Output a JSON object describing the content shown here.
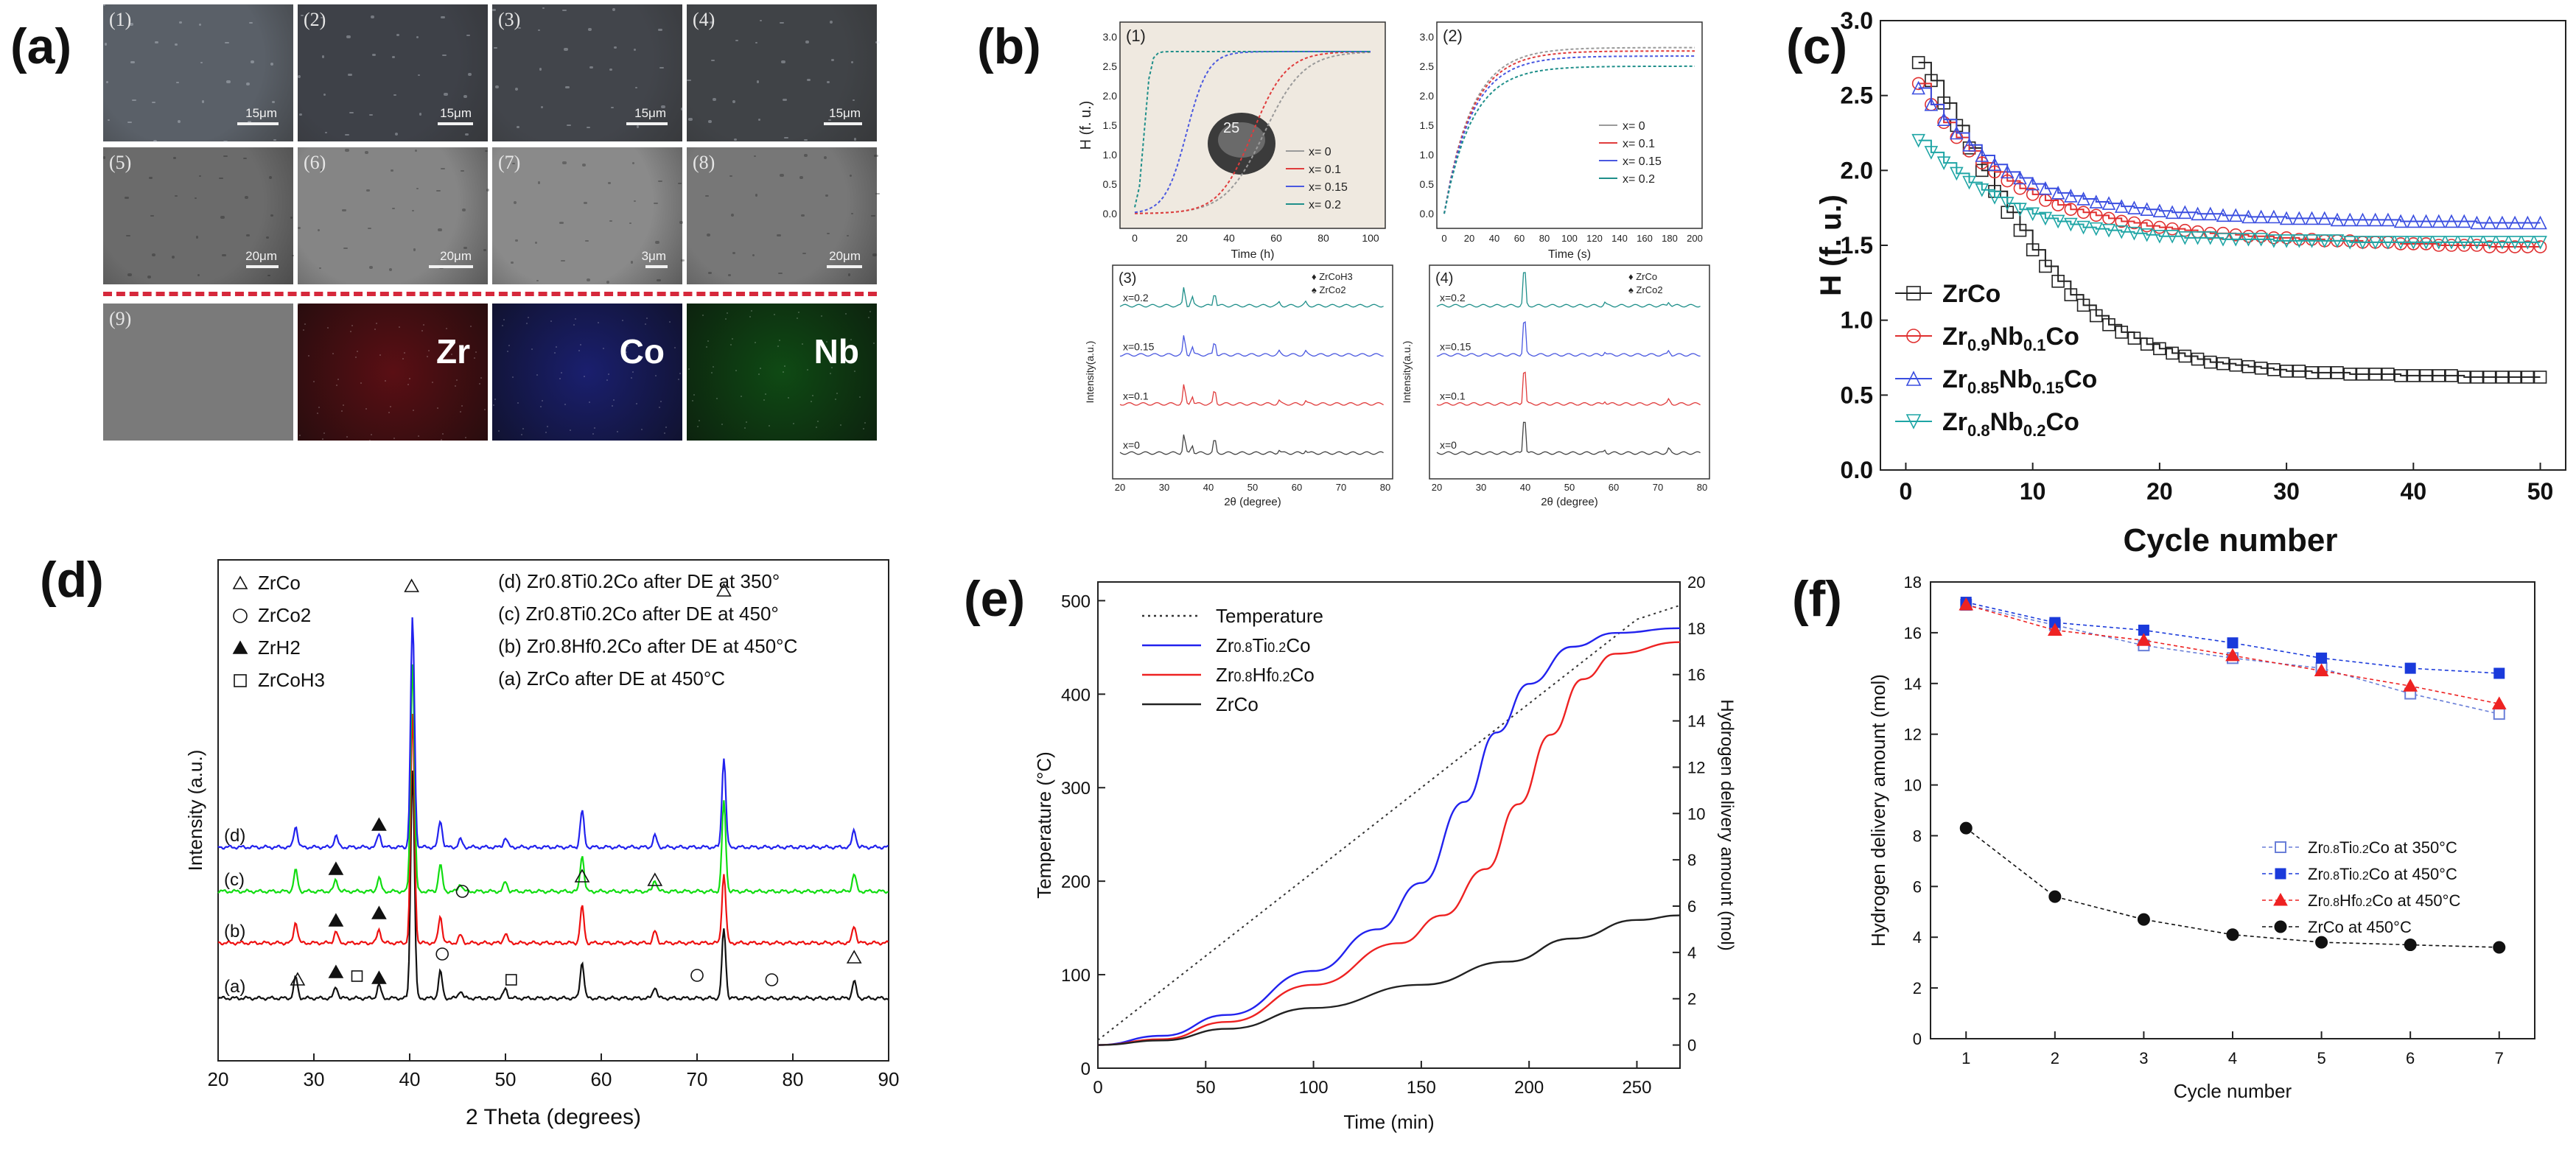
{
  "labels": {
    "a": "(a)",
    "b": "(b)",
    "c": "(c)",
    "d": "(d)",
    "e": "(e)",
    "f": "(f)"
  },
  "panel_a": {
    "tiles": [
      {
        "num": "(1)",
        "scale": "15μm",
        "tone": "#5a6068"
      },
      {
        "num": "(2)",
        "scale": "15μm",
        "tone": "#3e4148"
      },
      {
        "num": "(3)",
        "scale": "15μm",
        "tone": "#42454b"
      },
      {
        "num": "(4)",
        "scale": "15μm",
        "tone": "#404347"
      },
      {
        "num": "(5)",
        "scale": "20μm",
        "tone": "#6b6b6b"
      },
      {
        "num": "(6)",
        "scale": "20μm",
        "tone": "#858585"
      },
      {
        "num": "(7)",
        "scale": "3μm",
        "tone": "#8a8a8a"
      },
      {
        "num": "(8)",
        "scale": "20μm",
        "tone": "#777777"
      },
      {
        "num": "(9)",
        "scale": "",
        "tone": "#7a7a7a"
      }
    ],
    "maps": [
      {
        "element": "Zr",
        "color": "#5a0f14"
      },
      {
        "element": "Co",
        "color": "#1a1f6e"
      },
      {
        "element": "Nb",
        "color": "#0f4a14"
      }
    ]
  },
  "panel_b": {
    "sub1": {
      "num": "(1)",
      "ylabel": "H (f. u.)",
      "xlabel": "Time (h)",
      "xticks": [
        "0",
        "20",
        "40",
        "60",
        "80",
        "100"
      ],
      "yticks": [
        "0.0",
        "0.5",
        "1.0",
        "1.5",
        "2.0",
        "2.5",
        "3.0"
      ],
      "legend": [
        "x= 0",
        "x= 0.1",
        "x= 0.15",
        "x= 0.2"
      ],
      "photo_label": "25"
    },
    "sub2": {
      "num": "(2)",
      "xlabel": "Time (s)",
      "xticks": [
        "0",
        "20",
        "40",
        "60",
        "80",
        "100",
        "120",
        "140",
        "160",
        "180",
        "200"
      ],
      "yticks": [
        "0.0",
        "0.5",
        "1.0",
        "1.5",
        "2.0",
        "2.5",
        "3.0"
      ],
      "legend": [
        "x= 0",
        "x= 0.1",
        "x= 0.15",
        "x= 0.2"
      ]
    },
    "sub3": {
      "num": "(3)",
      "ylabel": "Intensity(a.u.)",
      "xlabel": "2θ (degree)",
      "xticks": [
        "20",
        "30",
        "40",
        "50",
        "60",
        "70",
        "80"
      ],
      "curves": [
        "x=0.2",
        "x=0.15",
        "x=0.1",
        "x=0"
      ],
      "legend": [
        "ZrCoH3",
        "ZrCo2"
      ]
    },
    "sub4": {
      "num": "(4)",
      "ylabel": "Intensity(a.u.)",
      "xlabel": "2θ (degree)",
      "xticks": [
        "20",
        "30",
        "40",
        "50",
        "60",
        "70",
        "80"
      ],
      "curves": [
        "x=0.2",
        "x=0.15",
        "x=0.1",
        "x=0"
      ],
      "legend": [
        "ZrCo",
        "ZrCo2"
      ]
    },
    "colors": [
      "#9a9a9a",
      "#e03c3c",
      "#4a58e0",
      "#1f8f8a"
    ]
  },
  "chart_data": [
    {
      "id": "c",
      "type": "line",
      "title": "",
      "xlabel": "Cycle number",
      "ylabel": "H (f. u.)",
      "xlim": [
        -2,
        52
      ],
      "ylim": [
        0.0,
        3.0
      ],
      "xticks": [
        "0",
        "10",
        "20",
        "30",
        "40",
        "50"
      ],
      "yticks": [
        "0.0",
        "0.5",
        "1.0",
        "1.5",
        "2.0",
        "2.5",
        "3.0"
      ],
      "x": [
        1,
        2,
        3,
        4,
        5,
        6,
        7,
        8,
        9,
        10,
        11,
        12,
        13,
        14,
        15,
        16,
        17,
        18,
        19,
        20,
        21,
        22,
        23,
        24,
        25,
        26,
        27,
        28,
        29,
        30,
        31,
        32,
        33,
        34,
        35,
        36,
        37,
        38,
        39,
        40,
        41,
        42,
        43,
        44,
        45,
        46,
        47,
        48,
        49,
        50
      ],
      "series": [
        {
          "name": "ZrCo",
          "color": "#222222",
          "marker": "square",
          "values": [
            2.72,
            2.6,
            2.45,
            2.3,
            2.15,
            2.0,
            1.86,
            1.72,
            1.6,
            1.47,
            1.36,
            1.26,
            1.17,
            1.1,
            1.03,
            0.97,
            0.92,
            0.88,
            0.84,
            0.81,
            0.78,
            0.76,
            0.74,
            0.72,
            0.71,
            0.7,
            0.69,
            0.68,
            0.67,
            0.66,
            0.66,
            0.65,
            0.65,
            0.65,
            0.64,
            0.64,
            0.64,
            0.64,
            0.63,
            0.63,
            0.63,
            0.63,
            0.63,
            0.62,
            0.62,
            0.62,
            0.62,
            0.62,
            0.62,
            0.62
          ]
        },
        {
          "name": "Zr0.9Nb0.1Co",
          "color": "#e03030",
          "marker": "circle",
          "values": [
            2.58,
            2.44,
            2.32,
            2.22,
            2.13,
            2.05,
            1.99,
            1.93,
            1.88,
            1.84,
            1.8,
            1.77,
            1.74,
            1.72,
            1.7,
            1.68,
            1.66,
            1.65,
            1.63,
            1.62,
            1.61,
            1.6,
            1.59,
            1.58,
            1.58,
            1.57,
            1.56,
            1.56,
            1.55,
            1.55,
            1.54,
            1.54,
            1.53,
            1.53,
            1.53,
            1.52,
            1.52,
            1.52,
            1.51,
            1.51,
            1.51,
            1.5,
            1.5,
            1.5,
            1.5,
            1.49,
            1.49,
            1.49,
            1.49,
            1.49
          ]
        },
        {
          "name": "Zr0.85Nb0.15Co",
          "color": "#3a4ee0",
          "marker": "triangle-up",
          "values": [
            2.55,
            2.44,
            2.34,
            2.25,
            2.17,
            2.1,
            2.04,
            1.99,
            1.95,
            1.91,
            1.88,
            1.85,
            1.83,
            1.81,
            1.79,
            1.78,
            1.76,
            1.75,
            1.74,
            1.73,
            1.72,
            1.72,
            1.71,
            1.71,
            1.7,
            1.7,
            1.69,
            1.69,
            1.69,
            1.68,
            1.68,
            1.68,
            1.68,
            1.67,
            1.67,
            1.67,
            1.67,
            1.67,
            1.66,
            1.66,
            1.66,
            1.66,
            1.66,
            1.66,
            1.65,
            1.65,
            1.65,
            1.65,
            1.65,
            1.65
          ]
        },
        {
          "name": "Zr0.8Nb0.2Co",
          "color": "#1ea5a5",
          "marker": "triangle-down",
          "values": [
            2.2,
            2.12,
            2.05,
            1.98,
            1.92,
            1.87,
            1.82,
            1.78,
            1.74,
            1.71,
            1.68,
            1.66,
            1.64,
            1.62,
            1.61,
            1.6,
            1.59,
            1.58,
            1.57,
            1.56,
            1.56,
            1.55,
            1.55,
            1.55,
            1.54,
            1.54,
            1.54,
            1.54,
            1.53,
            1.53,
            1.53,
            1.53,
            1.53,
            1.53,
            1.52,
            1.52,
            1.52,
            1.52,
            1.52,
            1.52,
            1.52,
            1.52,
            1.52,
            1.52,
            1.52,
            1.52,
            1.52,
            1.52,
            1.52,
            1.52
          ]
        }
      ],
      "legend_placement": "bottom-left"
    },
    {
      "id": "d",
      "type": "line",
      "xlabel": "2 Theta (degrees)",
      "ylabel": "Intensity (a.u.)",
      "xlim": [
        20,
        90
      ],
      "xticks": [
        "20",
        "30",
        "40",
        "50",
        "60",
        "70",
        "80",
        "90"
      ],
      "series": [
        {
          "name": "(a)",
          "label": "(a) ZrCo after DE at 450°C",
          "color": "#111111",
          "offset": 0
        },
        {
          "name": "(b)",
          "label": "(b) Zr0.8Hf0.2Co after DE at 450°C",
          "color": "#ee1111",
          "offset": 1
        },
        {
          "name": "(c)",
          "label": "(c) Zr0.8Ti0.2Co after DE at 450°",
          "color": "#11dd11",
          "offset": 2
        },
        {
          "name": "(d)",
          "label": "(d) Zr0.8Ti0.2Co after DE at 350°",
          "color": "#2222ee",
          "offset": 3
        }
      ],
      "peaks": [
        {
          "x": 28.1,
          "h": 0.55
        },
        {
          "x": 32.3,
          "h": 0.3
        },
        {
          "x": 36.8,
          "h": 0.35
        },
        {
          "x": 40.3,
          "h": 6.0
        },
        {
          "x": 43.2,
          "h": 0.7
        },
        {
          "x": 45.3,
          "h": 0.2
        },
        {
          "x": 50.0,
          "h": 0.25
        },
        {
          "x": 58.0,
          "h": 0.95
        },
        {
          "x": 65.6,
          "h": 0.3
        },
        {
          "x": 72.8,
          "h": 1.8
        },
        {
          "x": 86.4,
          "h": 0.45
        }
      ],
      "legend_phases": [
        "ZrCo",
        "ZrCo2",
        "ZrH2",
        "ZrCoH3"
      ]
    },
    {
      "id": "e",
      "type": "line",
      "xlabel": "Time (min)",
      "ylabel": "Temperature (°C)",
      "y2label": "Hydrogen delivery amount (mol)",
      "xlim": [
        0,
        270
      ],
      "ylim": [
        0,
        520
      ],
      "y2lim": [
        -1,
        20
      ],
      "xticks": [
        "0",
        "50",
        "100",
        "150",
        "200",
        "250"
      ],
      "yticks": [
        "0",
        "100",
        "200",
        "300",
        "400",
        "500"
      ],
      "y2ticks": [
        "0",
        "2",
        "4",
        "6",
        "8",
        "10",
        "12",
        "14",
        "16",
        "18",
        "20"
      ],
      "series": [
        {
          "name": "Temperature",
          "color": "#333333",
          "dash": true,
          "axis": "left",
          "points": [
            [
              0,
              30
            ],
            [
              250,
              480
            ],
            [
              270,
              495
            ]
          ]
        },
        {
          "name": "Zr0.8Ti0.2Co",
          "color": "#2222ee",
          "axis": "right",
          "points": [
            [
              0,
              0
            ],
            [
              30,
              0.4
            ],
            [
              60,
              1.3
            ],
            [
              100,
              3.2
            ],
            [
              130,
              5.0
            ],
            [
              150,
              7.0
            ],
            [
              170,
              10.5
            ],
            [
              185,
              13.5
            ],
            [
              200,
              15.6
            ],
            [
              220,
              17.2
            ],
            [
              240,
              17.8
            ],
            [
              270,
              18.0
            ]
          ]
        },
        {
          "name": "Zr0.8Hf0.2Co",
          "color": "#ee2222",
          "axis": "right",
          "points": [
            [
              0,
              0
            ],
            [
              30,
              0.25
            ],
            [
              60,
              1.0
            ],
            [
              100,
              2.6
            ],
            [
              140,
              4.4
            ],
            [
              160,
              5.6
            ],
            [
              180,
              7.6
            ],
            [
              195,
              10.4
            ],
            [
              210,
              13.4
            ],
            [
              225,
              15.8
            ],
            [
              240,
              16.9
            ],
            [
              270,
              17.4
            ]
          ]
        },
        {
          "name": "ZrCo",
          "color": "#222222",
          "axis": "right",
          "points": [
            [
              0,
              0
            ],
            [
              30,
              0.2
            ],
            [
              60,
              0.7
            ],
            [
              100,
              1.6
            ],
            [
              150,
              2.6
            ],
            [
              190,
              3.6
            ],
            [
              220,
              4.6
            ],
            [
              250,
              5.4
            ],
            [
              270,
              5.6
            ]
          ]
        }
      ]
    },
    {
      "id": "f",
      "type": "line",
      "xlabel": "Cycle number",
      "ylabel": "Hydrogen delivery amount (mol)",
      "xlim": [
        0.6,
        7.4
      ],
      "ylim": [
        0,
        18
      ],
      "xticks": [
        "1",
        "2",
        "3",
        "4",
        "5",
        "6",
        "7"
      ],
      "yticks": [
        "0",
        "2",
        "4",
        "6",
        "8",
        "10",
        "12",
        "14",
        "16",
        "18"
      ],
      "x": [
        1,
        2,
        3,
        4,
        5,
        6,
        7
      ],
      "series": [
        {
          "name": "Zr0.8Ti0.2Co at 350°C",
          "color": "#6a7fd8",
          "marker": "open-square",
          "dash": true,
          "values": [
            17.1,
            16.3,
            15.5,
            15.0,
            14.6,
            13.6,
            12.8
          ]
        },
        {
          "name": "Zr0.8Ti0.2Co at 450°C",
          "color": "#1a3adb",
          "marker": "square",
          "dash": true,
          "values": [
            17.2,
            16.4,
            16.1,
            15.6,
            15.0,
            14.6,
            14.4
          ]
        },
        {
          "name": "Zr0.8Hf0.2Co at 450°C",
          "color": "#ee2222",
          "marker": "triangle",
          "dash": true,
          "values": [
            17.1,
            16.1,
            15.7,
            15.1,
            14.5,
            13.9,
            13.2
          ]
        },
        {
          "name": "ZrCo at 450°C",
          "color": "#111111",
          "marker": "circle",
          "dash": true,
          "values": [
            8.3,
            5.6,
            4.7,
            4.1,
            3.8,
            3.7,
            3.6
          ]
        }
      ]
    }
  ]
}
